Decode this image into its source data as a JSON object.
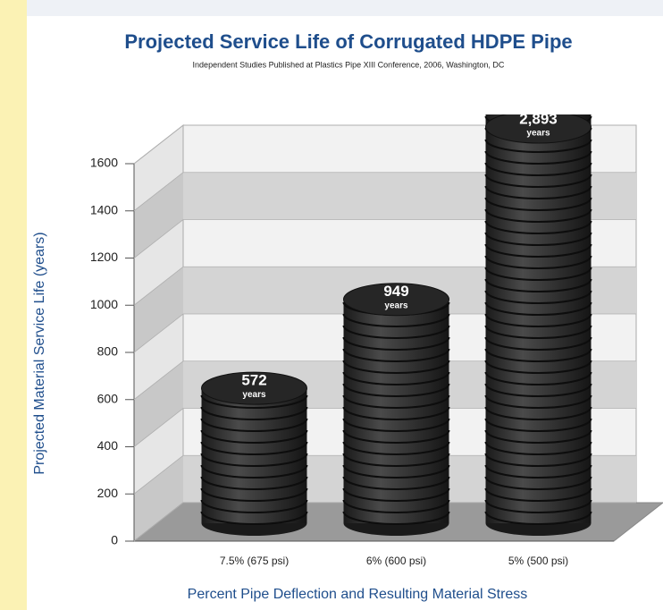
{
  "chart_data": {
    "type": "bar",
    "title": "Projected Service Life of Corrugated HDPE Pipe",
    "subtitle": "Independent Studies Published at Plastics Pipe XIII Conference, 2006, Washington, DC",
    "y_label": "Projected Material Service Life (years)",
    "x_label": "Percent Pipe Deflection and Resulting Material Stress",
    "categories": [
      "7.5% (675 psi)",
      "6% (600 psi)",
      "5% (500 psi)"
    ],
    "values": [
      572,
      949,
      2893
    ],
    "value_labels": [
      "572",
      "949",
      "2,893"
    ],
    "value_label_unit": "years",
    "color": "#2b2b2b",
    "ylim": [
      0,
      1600
    ],
    "yticks": [
      0,
      200,
      400,
      600,
      800,
      1000,
      1200,
      1400,
      1600
    ],
    "grid": true
  }
}
